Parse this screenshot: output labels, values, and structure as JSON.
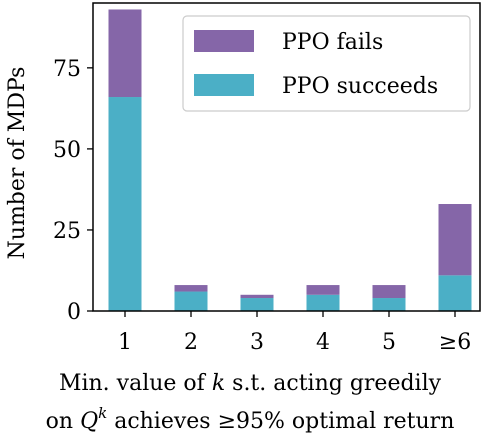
{
  "chart_data": {
    "type": "bar",
    "stacked": true,
    "categories": [
      "1",
      "2",
      "3",
      "4",
      "5",
      "≥6"
    ],
    "series": [
      {
        "name": "PPO succeeds",
        "color": "#4bafc6",
        "values": [
          66,
          6,
          4,
          5,
          4,
          11
        ]
      },
      {
        "name": "PPO fails",
        "color": "#8566a8",
        "values": [
          27,
          2,
          1,
          3,
          4,
          22
        ]
      }
    ],
    "ylabel": "Number of MDPs",
    "xlabel_line1": {
      "text": "Min. value of ",
      "var": "k",
      "rest": " s.t. acting greedily"
    },
    "xlabel_line2": {
      "pre": "on ",
      "var": "Q",
      "sup": "k",
      "rest": " achieves ≥95% optimal return"
    },
    "ylim": [
      0,
      95
    ],
    "yticks": [
      0,
      25,
      50,
      75
    ],
    "legend_position": "top-right",
    "grid": false
  }
}
